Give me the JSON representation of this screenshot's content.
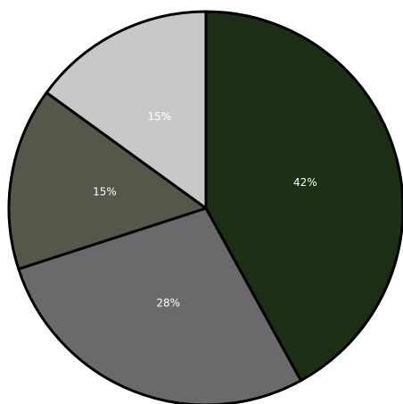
{
  "chart_data": {
    "type": "pie",
    "values": [
      42,
      28,
      15,
      15
    ],
    "value_labels": [
      "42%",
      "28%",
      "15%",
      "15%"
    ],
    "colors": [
      "#1c2e14",
      "#6b696b",
      "#55574a",
      "#c8c8c6"
    ]
  }
}
